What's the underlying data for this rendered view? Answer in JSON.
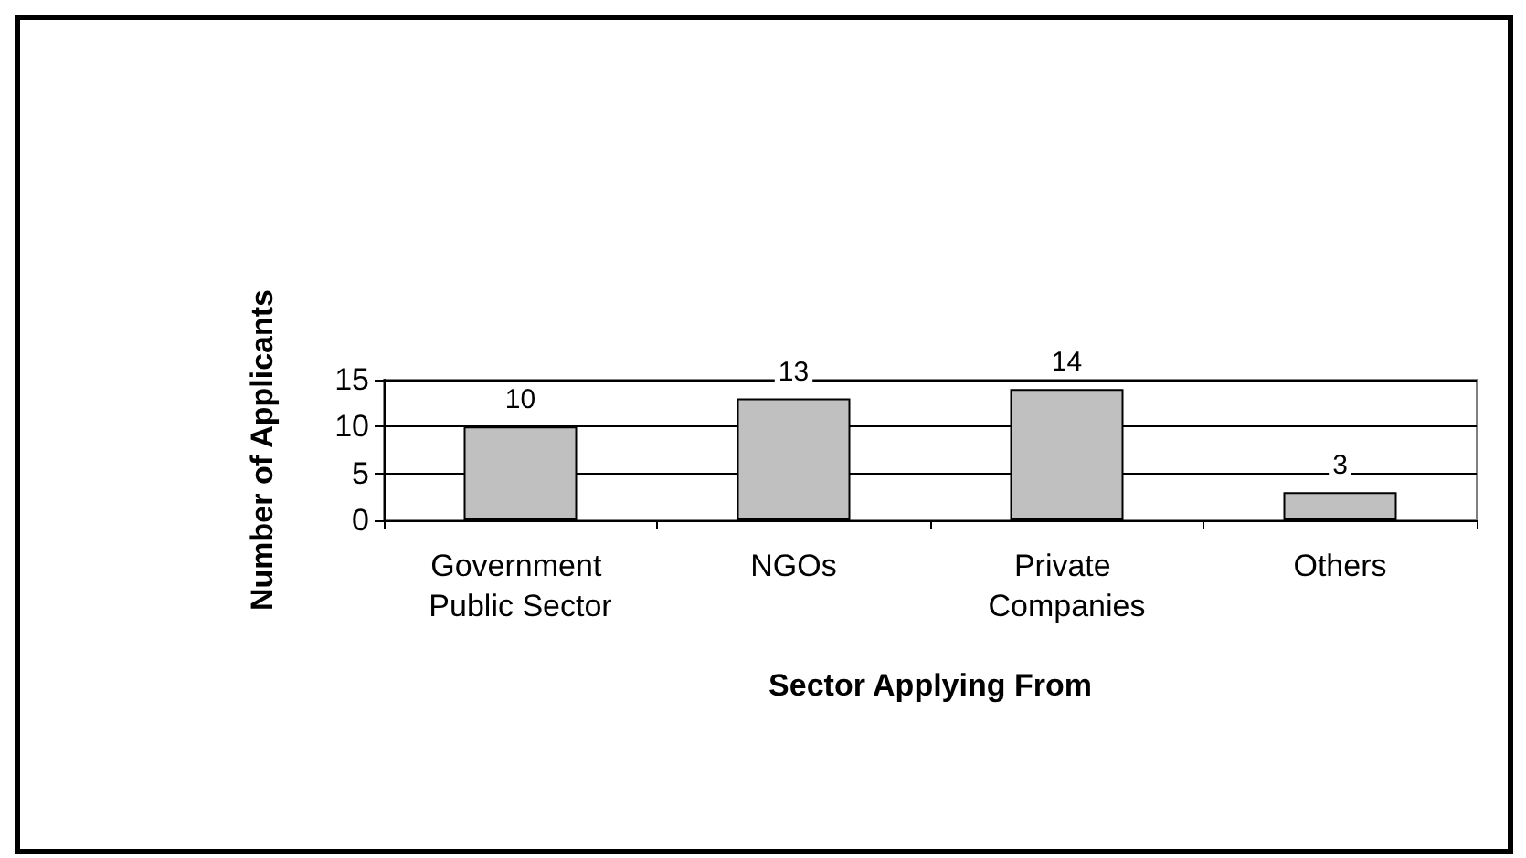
{
  "chart_data": {
    "type": "bar",
    "xlabel": "Sector Applying From",
    "ylabel": "Number of Applicants",
    "categories": [
      "Government Public Sector",
      "NGOs",
      "Private Companies",
      "Others"
    ],
    "values": [
      10,
      13,
      14,
      3
    ],
    "color": "#c0c0c0",
    "ylim": [
      0,
      15
    ],
    "yticks": [
      0,
      5,
      10,
      15
    ],
    "grid": "y",
    "data_labels": true
  }
}
